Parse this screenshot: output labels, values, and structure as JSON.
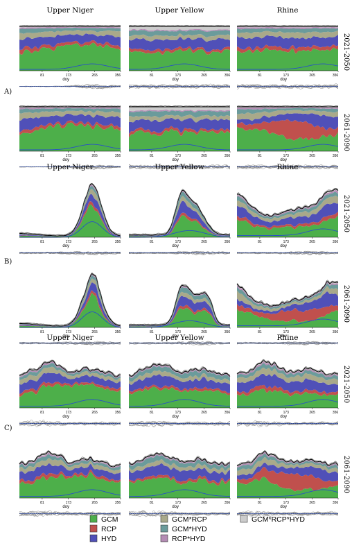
{
  "chart_data": {
    "type": "area",
    "panels": [
      "A)",
      "B)",
      "C)"
    ],
    "basins": [
      "Upper Niger",
      "Upper Yellow",
      "Rhine"
    ],
    "periods": [
      "2021-2050",
      "2061-2090"
    ],
    "x_ticks": [
      "81",
      "173",
      "265",
      "356"
    ],
    "xlabel": "doy",
    "legend": [
      {
        "label": "GCM",
        "color": "#4daf4a"
      },
      {
        "label": "RCP",
        "color": "#c0504d"
      },
      {
        "label": "HYD",
        "color": "#5050b8"
      },
      {
        "label": "GCM*RCP",
        "color": "#a9a98a"
      },
      {
        "label": "GCM*HYD",
        "color": "#6b9b9b"
      },
      {
        "label": "RCP*HYD",
        "color": "#b48cb4"
      },
      {
        "label": "GCM*RCP*HYD",
        "color": "#cccccc"
      }
    ],
    "component_order": [
      "GCM",
      "RCP",
      "HYD",
      "GCM*RCP",
      "GCM*HYD",
      "RCP*HYD",
      "GCM*RCP*HYD"
    ],
    "colors": {
      "outline": "#000000",
      "blue_line": "#2850c8",
      "spread": "#888888"
    }
  }
}
